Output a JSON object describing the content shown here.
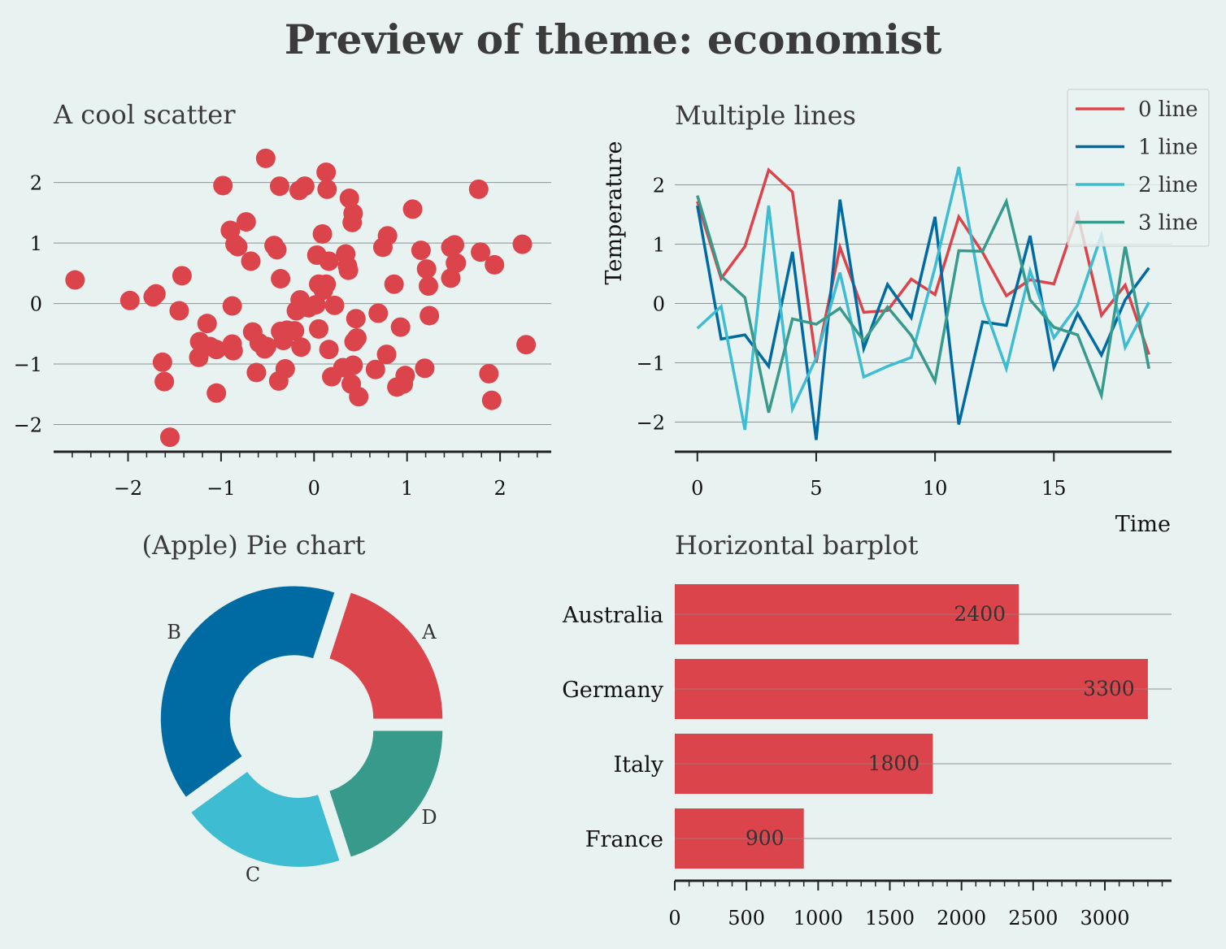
{
  "title": "Preview of theme: economist",
  "colors": {
    "background": "#e8f2f1",
    "red": "#db444b",
    "blue": "#006ba2",
    "cyan": "#3ebcd2",
    "green": "#379a8b",
    "grid": "#8a9494",
    "axis": "#222222"
  },
  "chart_data": [
    {
      "type": "scatter",
      "title": "A cool scatter",
      "xlabel": "",
      "ylabel": "",
      "xlim": [
        -2.8,
        2.55
      ],
      "ylim": [
        -2.45,
        2.6
      ],
      "xticks": [
        -2,
        -1,
        0,
        1,
        2
      ],
      "xtick_labels": [
        "−2",
        "−1",
        "0",
        "1",
        "2"
      ],
      "yticks": [
        -2,
        -1,
        0,
        1,
        2
      ],
      "ytick_labels": [
        "−2",
        "−1",
        "0",
        "1",
        "2"
      ],
      "grid": "horizontal",
      "color": "#db444b",
      "points": [
        [
          -2.57,
          0.39
        ],
        [
          -1.98,
          0.05
        ],
        [
          -1.73,
          0.11
        ],
        [
          -1.7,
          0.16
        ],
        [
          -1.63,
          -0.97
        ],
        [
          -1.61,
          -1.29
        ],
        [
          -1.55,
          -2.21
        ],
        [
          -1.45,
          -0.12
        ],
        [
          -1.42,
          0.46
        ],
        [
          -1.15,
          -0.33
        ],
        [
          -1.23,
          -0.63
        ],
        [
          -1.24,
          -0.89
        ],
        [
          -1.12,
          -0.71
        ],
        [
          -1.05,
          -0.76
        ],
        [
          -1.05,
          -1.48
        ],
        [
          -0.98,
          1.95
        ],
        [
          -0.9,
          1.21
        ],
        [
          -0.88,
          -0.67
        ],
        [
          -0.87,
          -0.78
        ],
        [
          -0.88,
          -0.04
        ],
        [
          -0.85,
          0.98
        ],
        [
          -0.82,
          0.94
        ],
        [
          -0.73,
          1.35
        ],
        [
          -0.68,
          0.7
        ],
        [
          -0.66,
          -0.47
        ],
        [
          -0.62,
          -1.14
        ],
        [
          -0.59,
          -0.65
        ],
        [
          -0.53,
          -0.75
        ],
        [
          -0.52,
          2.4
        ],
        [
          -0.51,
          -0.71
        ],
        [
          -0.43,
          0.96
        ],
        [
          -0.4,
          0.89
        ],
        [
          -0.38,
          -1.28
        ],
        [
          -0.37,
          1.94
        ],
        [
          -0.36,
          0.41
        ],
        [
          -0.36,
          -0.46
        ],
        [
          -0.33,
          -0.61
        ],
        [
          -0.31,
          -1.08
        ],
        [
          -0.29,
          -0.44
        ],
        [
          -0.21,
          -0.45
        ],
        [
          -0.19,
          -0.12
        ],
        [
          -0.16,
          1.87
        ],
        [
          -0.15,
          0.06
        ],
        [
          -0.14,
          -0.72
        ],
        [
          -0.1,
          1.94
        ],
        [
          -0.06,
          -0.07
        ],
        [
          0.02,
          -0.02
        ],
        [
          0.03,
          0.8
        ],
        [
          0.05,
          -0.42
        ],
        [
          0.05,
          0.32
        ],
        [
          0.09,
          1.15
        ],
        [
          0.1,
          0.22
        ],
        [
          0.13,
          0.32
        ],
        [
          0.13,
          2.17
        ],
        [
          0.14,
          1.89
        ],
        [
          0.16,
          0.7
        ],
        [
          0.16,
          -0.76
        ],
        [
          0.19,
          -1.21
        ],
        [
          0.22,
          -0.03
        ],
        [
          0.31,
          -1.06
        ],
        [
          0.34,
          0.82
        ],
        [
          0.36,
          0.62
        ],
        [
          0.37,
          0.55
        ],
        [
          0.38,
          1.74
        ],
        [
          0.4,
          -1.33
        ],
        [
          0.41,
          1.34
        ],
        [
          0.42,
          -1.02
        ],
        [
          0.42,
          1.49
        ],
        [
          0.43,
          -0.63
        ],
        [
          0.45,
          -0.25
        ],
        [
          0.46,
          -0.57
        ],
        [
          0.48,
          -1.54
        ],
        [
          0.66,
          -1.09
        ],
        [
          0.69,
          -0.16
        ],
        [
          0.74,
          0.93
        ],
        [
          0.78,
          -0.84
        ],
        [
          0.79,
          1.12
        ],
        [
          0.86,
          0.32
        ],
        [
          0.89,
          -1.38
        ],
        [
          0.93,
          -0.39
        ],
        [
          0.96,
          -1.33
        ],
        [
          0.98,
          -1.19
        ],
        [
          1.06,
          1.56
        ],
        [
          1.15,
          0.88
        ],
        [
          1.19,
          -1.07
        ],
        [
          1.21,
          0.57
        ],
        [
          1.23,
          0.29
        ],
        [
          1.24,
          -0.2
        ],
        [
          1.47,
          0.42
        ],
        [
          1.47,
          0.93
        ],
        [
          1.51,
          0.97
        ],
        [
          1.52,
          0.67
        ],
        [
          1.53,
          0.67
        ],
        [
          1.77,
          1.89
        ],
        [
          1.79,
          0.85
        ],
        [
          1.88,
          -1.16
        ],
        [
          1.91,
          -1.6
        ],
        [
          1.94,
          0.64
        ],
        [
          2.24,
          0.98
        ],
        [
          2.28,
          -0.68
        ]
      ]
    },
    {
      "type": "line",
      "title": "Multiple lines",
      "xlabel": "Time",
      "ylabel": "Temperature",
      "xlim": [
        -0.95,
        19.95
      ],
      "ylim": [
        -2.5,
        2.65
      ],
      "xticks": [
        0,
        5,
        10,
        15
      ],
      "xtick_labels": [
        "0",
        "5",
        "10",
        "15"
      ],
      "yticks": [
        -2,
        -1,
        0,
        1,
        2
      ],
      "ytick_labels": [
        "−2",
        "−1",
        "0",
        "1",
        "2"
      ],
      "grid": "horizontal",
      "legend_position": "top-right",
      "x": [
        0,
        1,
        2,
        3,
        4,
        5,
        6,
        7,
        8,
        9,
        10,
        11,
        12,
        13,
        14,
        15,
        16,
        17,
        18,
        19
      ],
      "series": [
        {
          "name": "0 line",
          "color": "#db444b",
          "values": [
            1.72,
            0.42,
            0.96,
            2.25,
            1.88,
            -0.99,
            0.95,
            -0.15,
            -0.12,
            0.41,
            0.15,
            1.46,
            0.86,
            0.13,
            0.4,
            0.33,
            1.5,
            -0.2,
            0.31,
            -0.86
          ]
        },
        {
          "name": "1 line",
          "color": "#006ba2",
          "values": [
            1.65,
            -0.6,
            -0.53,
            -1.06,
            0.87,
            -2.3,
            1.75,
            -0.76,
            0.32,
            -0.24,
            1.46,
            -2.04,
            -0.31,
            -0.37,
            1.14,
            -1.08,
            -0.17,
            -0.87,
            0.06,
            0.6
          ]
        },
        {
          "name": "2 line",
          "color": "#3ebcd2",
          "values": [
            -0.42,
            -0.05,
            -2.13,
            1.65,
            -1.78,
            -0.92,
            0.52,
            -1.24,
            -1.06,
            -0.91,
            0.61,
            2.3,
            0.03,
            -1.1,
            0.55,
            -0.58,
            -0.03,
            1.15,
            -0.74,
            0.02
          ]
        },
        {
          "name": "3 line",
          "color": "#379a8b",
          "values": [
            1.82,
            0.46,
            0.1,
            -1.84,
            -0.26,
            -0.35,
            -0.08,
            -0.63,
            -0.06,
            -0.54,
            -1.31,
            0.89,
            0.88,
            1.72,
            0.06,
            -0.4,
            -0.53,
            -1.55,
            0.97,
            -1.1
          ]
        }
      ]
    },
    {
      "type": "pie",
      "title": "(Apple) Pie chart",
      "labels": [
        "A",
        "B",
        "C",
        "D"
      ],
      "values": [
        20,
        40,
        20,
        20
      ],
      "colors": [
        "#db444b",
        "#006ba2",
        "#3ebcd2",
        "#379a8b"
      ],
      "donut": true,
      "exploded": true
    },
    {
      "type": "bar",
      "orientation": "horizontal",
      "title": "Horizontal barplot",
      "categories": [
        "Australia",
        "Germany",
        "Italy",
        "France"
      ],
      "values": [
        2400,
        3300,
        1800,
        900
      ],
      "value_labels": [
        "2400",
        "3300",
        "1800",
        "900"
      ],
      "xlim": [
        0,
        3465
      ],
      "xticks": [
        0,
        500,
        1000,
        1500,
        2000,
        2500,
        3000
      ],
      "xtick_labels": [
        "0",
        "500",
        "1000",
        "1500",
        "2000",
        "2500",
        "3000"
      ],
      "grid": "horizontal",
      "color": "#db444b"
    }
  ]
}
